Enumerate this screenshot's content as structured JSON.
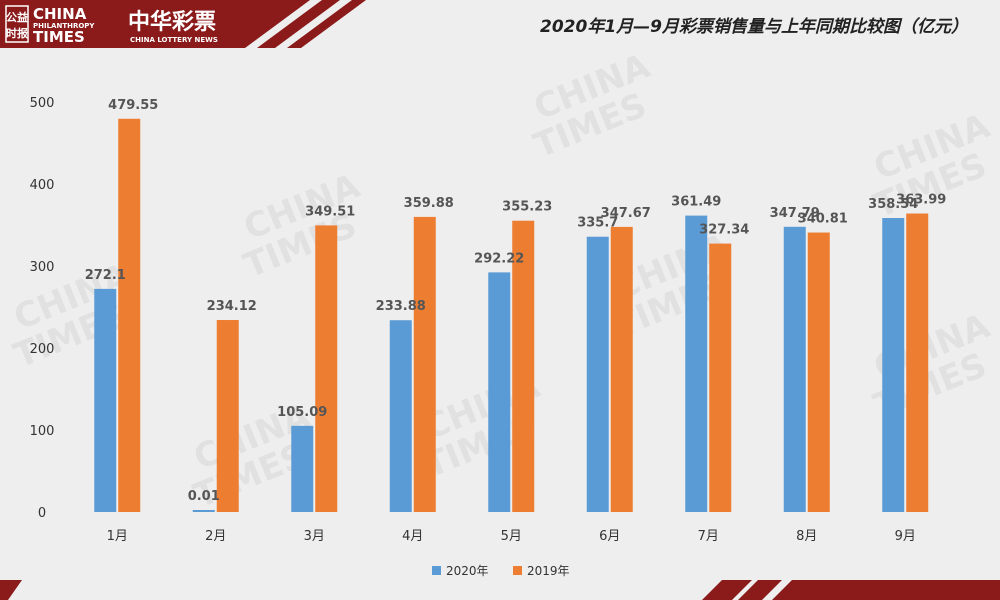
{
  "header": {
    "logo_cn_top": "公益",
    "logo_cn_bottom": "时报",
    "logo_en_1": "CHINA",
    "logo_en_2": "PHILANTHROPY",
    "logo_en_3": "TIMES",
    "lottery_cn": "中华彩票",
    "lottery_en": "CHINA LOTTERY NEWS"
  },
  "colors": {
    "series_2020": "#5b9bd5",
    "series_2019": "#ed7d31",
    "band": "#8b1a1a",
    "background": "#eeeeee"
  },
  "chart_data": {
    "type": "bar",
    "title": "2020年1月—9月彩票销售量与上年同期比较图（亿元）",
    "categories": [
      "1月",
      "2月",
      "3月",
      "4月",
      "5月",
      "6月",
      "7月",
      "8月",
      "9月"
    ],
    "series": [
      {
        "name": "2020年",
        "values": [
          272.1,
          0.01,
          105.09,
          233.88,
          292.22,
          335.7,
          361.49,
          347.79,
          358.54
        ]
      },
      {
        "name": "2019年",
        "values": [
          479.55,
          234.12,
          349.51,
          359.88,
          355.23,
          347.67,
          327.34,
          340.81,
          363.99
        ]
      }
    ],
    "data_labels_2020": [
      "272.1",
      "0.01",
      "105.09",
      "233.88",
      "292.22",
      "335.7",
      "361.49",
      "347.79",
      "358.54"
    ],
    "data_labels_2019": [
      "479.55",
      "234.12",
      "349.51",
      "359.88",
      "355.23",
      "347.67",
      "327.34",
      "340.81",
      "363.99"
    ],
    "y_ticks": [
      "0",
      "100",
      "200",
      "300",
      "400",
      "500"
    ],
    "ylim": [
      0,
      500
    ],
    "grid": false,
    "legend_position": "bottom"
  }
}
